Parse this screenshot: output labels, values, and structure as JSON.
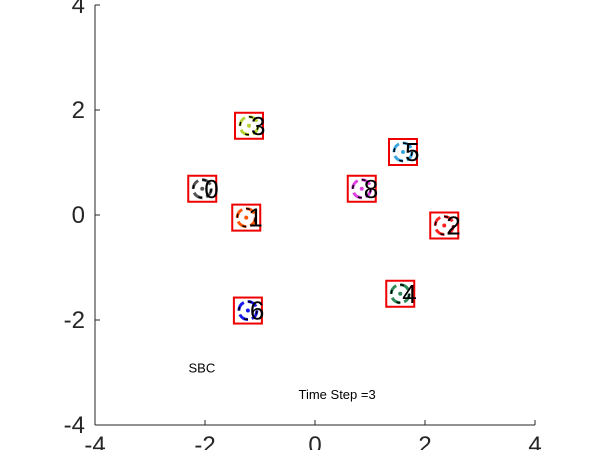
{
  "chart_data": {
    "type": "scatter",
    "xlim": [
      -4,
      4
    ],
    "ylim": [
      -4,
      4
    ],
    "x_ticks": [
      -4,
      -2,
      0,
      2,
      4
    ],
    "y_ticks": [
      -4,
      -2,
      0,
      2,
      4
    ],
    "x_tick_labels": [
      "-4",
      "-2",
      "0",
      "2",
      "4"
    ],
    "y_tick_labels": [
      "-4",
      "-2",
      "0",
      "2",
      "4"
    ],
    "grid": false,
    "annotations": [
      {
        "text": "SBC",
        "x": -2.3,
        "y": -3.0
      },
      {
        "text": "Time Step =3",
        "x": -0.3,
        "y": -3.5
      }
    ],
    "agents": [
      {
        "label": "0",
        "x": -2.05,
        "y": 0.5,
        "color": "#555555"
      },
      {
        "label": "1",
        "x": -1.25,
        "y": -0.05,
        "color": "#ff5500"
      },
      {
        "label": "2",
        "x": 2.35,
        "y": -0.2,
        "color": "#ff2222"
      },
      {
        "label": "3",
        "x": -1.2,
        "y": 1.7,
        "color": "#b5d334"
      },
      {
        "label": "4",
        "x": 1.55,
        "y": -1.5,
        "color": "#2e8b57"
      },
      {
        "label": "5",
        "x": 1.6,
        "y": 1.2,
        "color": "#3aa6e0"
      },
      {
        "label": "6",
        "x": -1.22,
        "y": -1.82,
        "color": "#1a1aee"
      },
      {
        "label": "8",
        "x": 0.85,
        "y": 0.5,
        "color": "#e040e0"
      }
    ],
    "marker_box_color": "#ee0000"
  }
}
